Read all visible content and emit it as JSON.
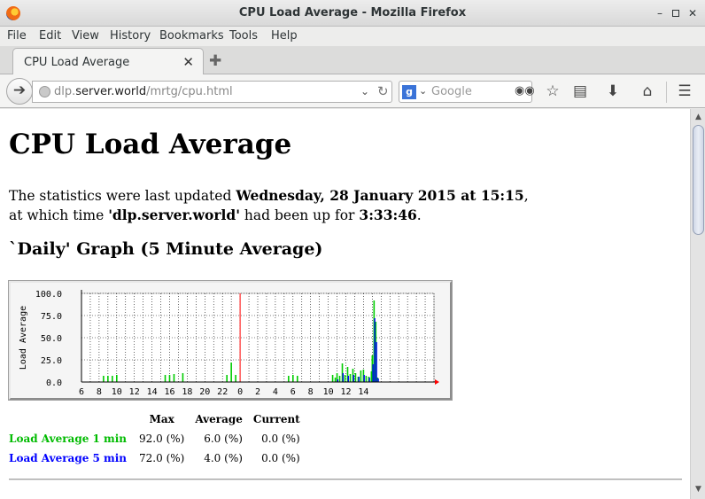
{
  "window": {
    "title": "CPU Load Average - Mozilla Firefox"
  },
  "menu": [
    "File",
    "Edit",
    "View",
    "History",
    "Bookmarks",
    "Tools",
    "Help"
  ],
  "tab": {
    "label": "CPU Load Average"
  },
  "url": {
    "host_prefix": "dlp.",
    "host_main": "server.world",
    "path": "/mrtg/cpu.html"
  },
  "search": {
    "placeholder": "Google",
    "engine_letter": "g"
  },
  "page": {
    "title": "CPU Load Average",
    "update_text1": "The statistics were last updated ",
    "update_date": "Wednesday, 28 January 2015 at 15:15",
    "update_text2": ",",
    "update_text3": "at which time ",
    "host": "'dlp.server.world'",
    "update_text4": " had been up for ",
    "uptime": "3:33:46",
    "update_text5": ".",
    "graph_heading": "`Daily' Graph (5 Minute Average)"
  },
  "stats": {
    "headers": [
      "Max",
      "Average",
      "Current"
    ],
    "rows": [
      {
        "label": "Load Average 1 min",
        "max": "92.0 (%)",
        "avg": "6.0 (%)",
        "cur": "0.0 (%)"
      },
      {
        "label": "Load Average 5 min",
        "max": "72.0 (%)",
        "avg": "4.0 (%)",
        "cur": "0.0 (%)"
      }
    ]
  },
  "chart_data": {
    "type": "bar",
    "ylabel": "Load Average",
    "ylim": [
      0,
      100
    ],
    "yticks": [
      "0.0",
      "25.0",
      "50.0",
      "75.0",
      "100.0"
    ],
    "xticks": [
      "6",
      "8",
      "10",
      "12",
      "14",
      "16",
      "18",
      "20",
      "22",
      "0",
      "2",
      "4",
      "6",
      "8",
      "10",
      "12",
      "14"
    ],
    "grid": true,
    "series": [
      {
        "name": "Load Average 1 min",
        "color": "#00cc00",
        "hours": [
          8.5,
          9.0,
          9.5,
          10.0,
          15.5,
          16.0,
          16.5,
          17.5,
          22.5,
          23.0,
          23.5,
          29.5,
          30.0,
          30.5,
          34.5,
          34.8,
          35.0,
          35.3,
          35.6,
          35.9,
          36.2,
          36.5,
          36.8,
          37.1,
          37.4,
          37.7,
          38.0,
          38.3,
          38.6,
          38.9,
          39.0,
          39.2,
          39.4,
          39.6
        ],
        "values": [
          7,
          7,
          7,
          8,
          8,
          8,
          9,
          10,
          8,
          22,
          8,
          7,
          8,
          7,
          8,
          5,
          10,
          7,
          21,
          8,
          17,
          9,
          15,
          10,
          6,
          13,
          14,
          7,
          6,
          12,
          30,
          92,
          68,
          5
        ]
      },
      {
        "name": "Load Average 5 min",
        "color": "#0000ff",
        "hours": [
          35.0,
          35.6,
          36.2,
          36.8,
          37.4,
          38.0,
          38.6,
          39.0,
          39.2,
          39.4,
          39.6
        ],
        "values": [
          3,
          10,
          7,
          8,
          6,
          8,
          5,
          20,
          72,
          45,
          4
        ]
      }
    ],
    "now_marker": "red vertical line at 0"
  }
}
